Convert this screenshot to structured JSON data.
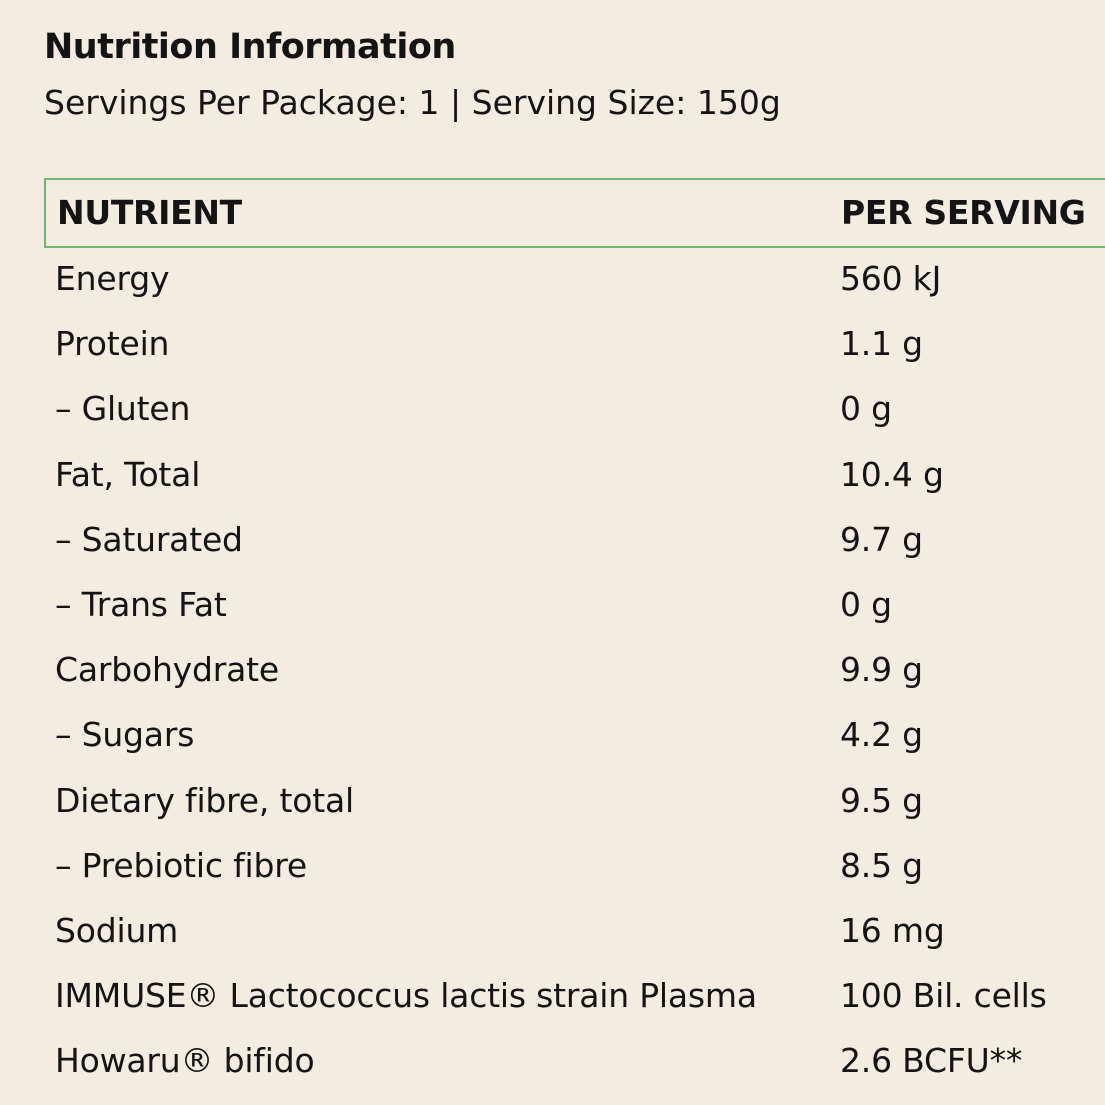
{
  "title": "Nutrition Information",
  "subtitle": "Servings Per Package: 1 | Serving Size: 150g",
  "table": {
    "headers": {
      "nutrient": "NUTRIENT",
      "per_serving": "PER SERVING"
    },
    "rows": [
      {
        "name": "Energy",
        "value": "560 kJ"
      },
      {
        "name": "Protein",
        "value": "1.1 g"
      },
      {
        "name": "– Gluten",
        "value": "0 g"
      },
      {
        "name": "Fat, Total",
        "value": "10.4 g"
      },
      {
        "name": "– Saturated",
        "value": "9.7 g"
      },
      {
        "name": "– Trans Fat",
        "value": "0 g"
      },
      {
        "name": "Carbohydrate",
        "value": "9.9 g"
      },
      {
        "name": "– Sugars",
        "value": "4.2 g"
      },
      {
        "name": "Dietary fibre, total",
        "value": "9.5 g"
      },
      {
        "name": "– Prebiotic fibre",
        "value": "8.5 g"
      },
      {
        "name": "Sodium",
        "value": "16 mg"
      },
      {
        "name": "IMMUSE® Lactococcus lactis strain Plasma",
        "value": "100 Bil. cells"
      },
      {
        "name": "Howaru® bifido",
        "value": "2.6 BCFU**"
      }
    ]
  },
  "colors": {
    "background": "#f3ece0",
    "text": "#141414",
    "header_border": "#6fb86a"
  }
}
